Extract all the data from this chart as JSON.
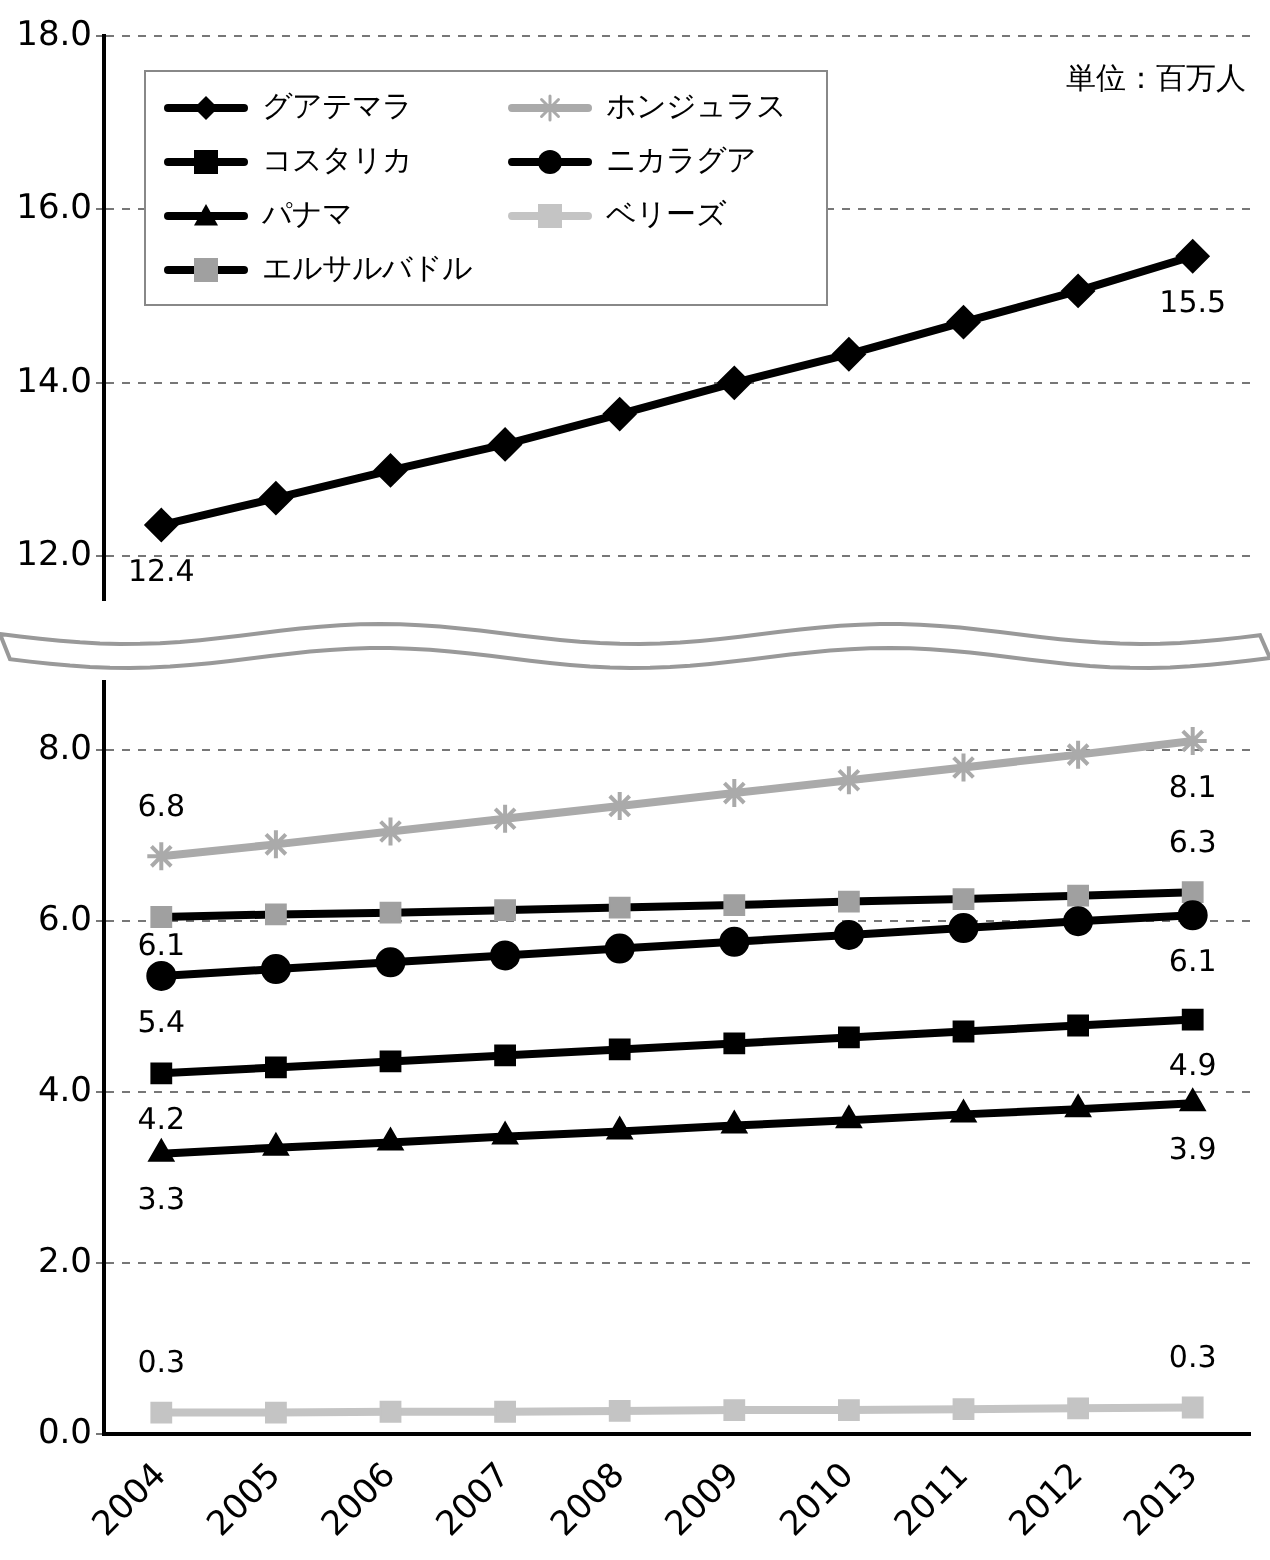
{
  "chart_data": [
    {
      "type": "line",
      "categories": [
        "2004",
        "2005",
        "2006",
        "2007",
        "2008",
        "2009",
        "2010",
        "2011",
        "2012",
        "2013"
      ],
      "ylim": [
        11.5,
        18
      ],
      "yticks": [
        {
          "value": 12,
          "label": "12.0"
        },
        {
          "value": 14,
          "label": "14.0"
        },
        {
          "value": 16,
          "label": "16.0"
        },
        {
          "value": 18,
          "label": "18.0"
        }
      ],
      "grid": "y",
      "tick_labels": "y",
      "legend": "top left",
      "line_style": "solid",
      "annotations": [
        "単位：百万人"
      ],
      "series": [
        {
          "name": "グアテマラ",
          "color": "#000000",
          "marker": "diamond",
          "values": [
            12.36,
            12.67,
            12.99,
            13.29,
            13.64,
            14.0,
            14.33,
            14.7,
            15.06,
            15.46
          ],
          "value_labels": [
            "12.4",
            null,
            null,
            null,
            null,
            null,
            null,
            null,
            null,
            "15.5"
          ]
        }
      ]
    },
    {
      "type": "line",
      "categories": [
        "2004",
        "2005",
        "2006",
        "2007",
        "2008",
        "2009",
        "2010",
        "2011",
        "2012",
        "2013"
      ],
      "ylim": [
        0,
        8.8
      ],
      "yticks": [
        {
          "value": 0,
          "label": "0.0"
        },
        {
          "value": 2,
          "label": "2.0"
        },
        {
          "value": 4,
          "label": "4.0"
        },
        {
          "value": 6,
          "label": "6.0"
        },
        {
          "value": 8,
          "label": "8.0"
        }
      ],
      "grid": "y",
      "legend": "top left",
      "line_style": "solid",
      "series": [
        {
          "name": "ホンジュラス",
          "color": "#aaaaaa",
          "marker": "cross",
          "values": [
            6.76,
            6.9,
            7.05,
            7.2,
            7.35,
            7.5,
            7.65,
            7.8,
            7.95,
            8.11
          ],
          "value_labels": [
            "6.8",
            null,
            null,
            null,
            null,
            null,
            null,
            null,
            null,
            "8.1"
          ]
        },
        {
          "name": "コスタリカ",
          "color": "#000000",
          "marker": "square",
          "values": [
            4.22,
            4.29,
            4.36,
            4.43,
            4.5,
            4.57,
            4.64,
            4.71,
            4.78,
            4.85
          ],
          "value_labels": [
            "4.2",
            null,
            null,
            null,
            null,
            null,
            null,
            null,
            null,
            "4.9"
          ]
        },
        {
          "name": "ニカラグア",
          "color": "#000000",
          "marker": "circle",
          "values": [
            5.36,
            5.44,
            5.52,
            5.6,
            5.68,
            5.76,
            5.84,
            5.92,
            6.0,
            6.07
          ],
          "value_labels": [
            "5.4",
            null,
            null,
            null,
            null,
            null,
            null,
            null,
            null,
            "6.1"
          ]
        },
        {
          "name": "パナマ",
          "color": "#000000",
          "marker": "triangle",
          "values": [
            3.28,
            3.35,
            3.41,
            3.48,
            3.54,
            3.61,
            3.67,
            3.74,
            3.8,
            3.87
          ],
          "value_labels": [
            "3.3",
            null,
            null,
            null,
            null,
            null,
            null,
            null,
            null,
            "3.9"
          ]
        },
        {
          "name": "ベリーズ",
          "color": "#c4c4c4",
          "marker": "square",
          "values": [
            0.25,
            0.25,
            0.26,
            0.26,
            0.27,
            0.28,
            0.28,
            0.29,
            0.3,
            0.31
          ],
          "value_labels": [
            "0.3",
            null,
            null,
            null,
            null,
            null,
            null,
            null,
            null,
            "0.3"
          ]
        },
        {
          "name": "エルサルバドル",
          "color": "#000000",
          "colors": [
            "#a0a0a0",
            "#a0a0a0",
            "#a0a0a0",
            "#a0a0a0",
            "#a0a0a0",
            "#a0a0a0",
            "#a0a0a0",
            "#a0a0a0",
            "#a0a0a0",
            "#a0a0a0"
          ],
          "marker": "square",
          "values": [
            6.05,
            6.08,
            6.1,
            6.13,
            6.16,
            6.19,
            6.23,
            6.26,
            6.3,
            6.34
          ],
          "value_labels": [
            "6.1",
            null,
            null,
            null,
            null,
            null,
            null,
            null,
            null,
            "6.3"
          ]
        }
      ]
    }
  ]
}
